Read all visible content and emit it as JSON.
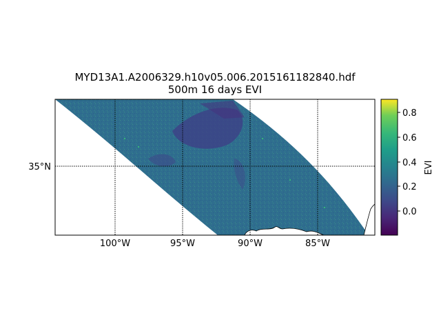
{
  "title": {
    "line1": "MYD13A1.A2006329.h10v05.006.2015161182840.hdf",
    "line2": "500m 16 days EVI"
  },
  "map": {
    "longitude_labels": [
      "100°W",
      "95°W",
      "90°W",
      "85°W"
    ],
    "longitude_values": [
      -100,
      -95,
      -90,
      -85
    ],
    "latitude_labels": [
      "35°N"
    ],
    "latitude_values": [
      35
    ],
    "extent": {
      "lon_min": -104.4,
      "lon_max": -80.8,
      "lat_min": 30.0,
      "lat_max": 40.0
    },
    "gridlines": "dotted"
  },
  "colorbar": {
    "label": "EVI",
    "colormap": "viridis",
    "ticks": [
      "0.8",
      "0.6",
      "0.4",
      "0.2",
      "0.0"
    ],
    "tick_values": [
      0.8,
      0.6,
      0.4,
      0.2,
      0.0
    ],
    "range": [
      -0.19,
      0.91
    ]
  },
  "colors": {
    "background_outside_swath": "#ffffff",
    "typical_evi": "#2f6e8e",
    "low_evi_region": "#3f3e86"
  }
}
